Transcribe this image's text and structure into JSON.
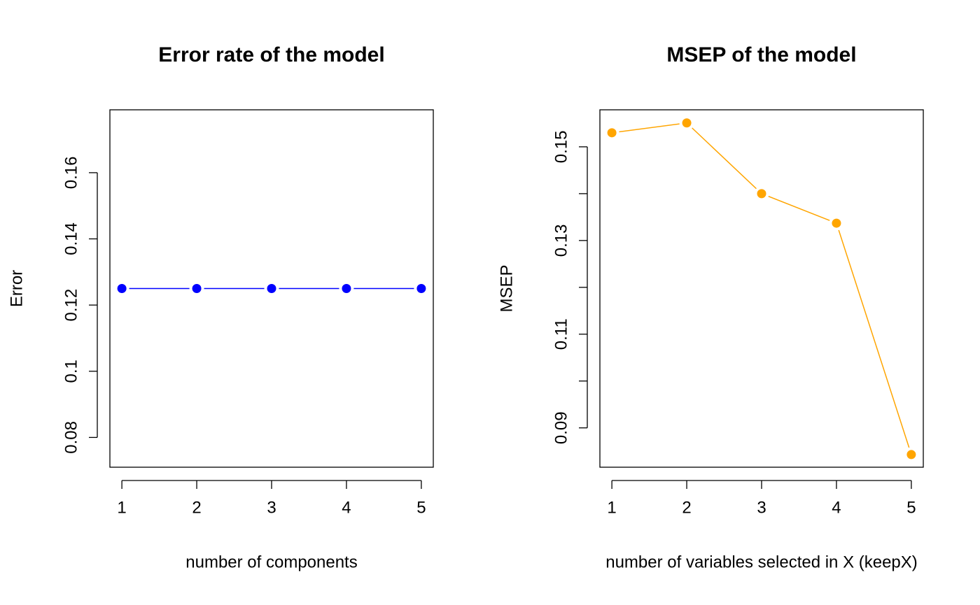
{
  "chart_data": [
    {
      "type": "line",
      "title": "Error rate of the model",
      "xlabel": "number of components",
      "ylabel": "Error",
      "x": [
        1,
        2,
        3,
        4,
        5
      ],
      "values": [
        0.125,
        0.125,
        0.125,
        0.125,
        0.125
      ],
      "color": "#0000ff",
      "xlim": [
        0.84,
        5.16
      ],
      "xticks": [
        1,
        2,
        3,
        4,
        5
      ],
      "ylim": [
        0.071,
        0.179
      ],
      "yticks": [
        0.08,
        0.1,
        0.12,
        0.14,
        0.16
      ]
    },
    {
      "type": "line",
      "title": "MSEP of the model",
      "xlabel": "number of variables selected in X (keepX)",
      "ylabel": "MSEP",
      "x": [
        1,
        2,
        3,
        4,
        5
      ],
      "values": [
        0.153,
        0.1551,
        0.14,
        0.1337,
        0.0843
      ],
      "color": "#ffa500",
      "xlim": [
        0.84,
        5.16
      ],
      "xticks": [
        1,
        2,
        3,
        4,
        5
      ],
      "ylim": [
        0.0816,
        0.1579
      ],
      "yticks": [
        0.09,
        {
          "value": 0.1,
          "label": null
        },
        0.11,
        {
          "value": 0.12,
          "label": null
        },
        0.13,
        {
          "value": 0.14,
          "label": null
        },
        0.15
      ]
    }
  ]
}
